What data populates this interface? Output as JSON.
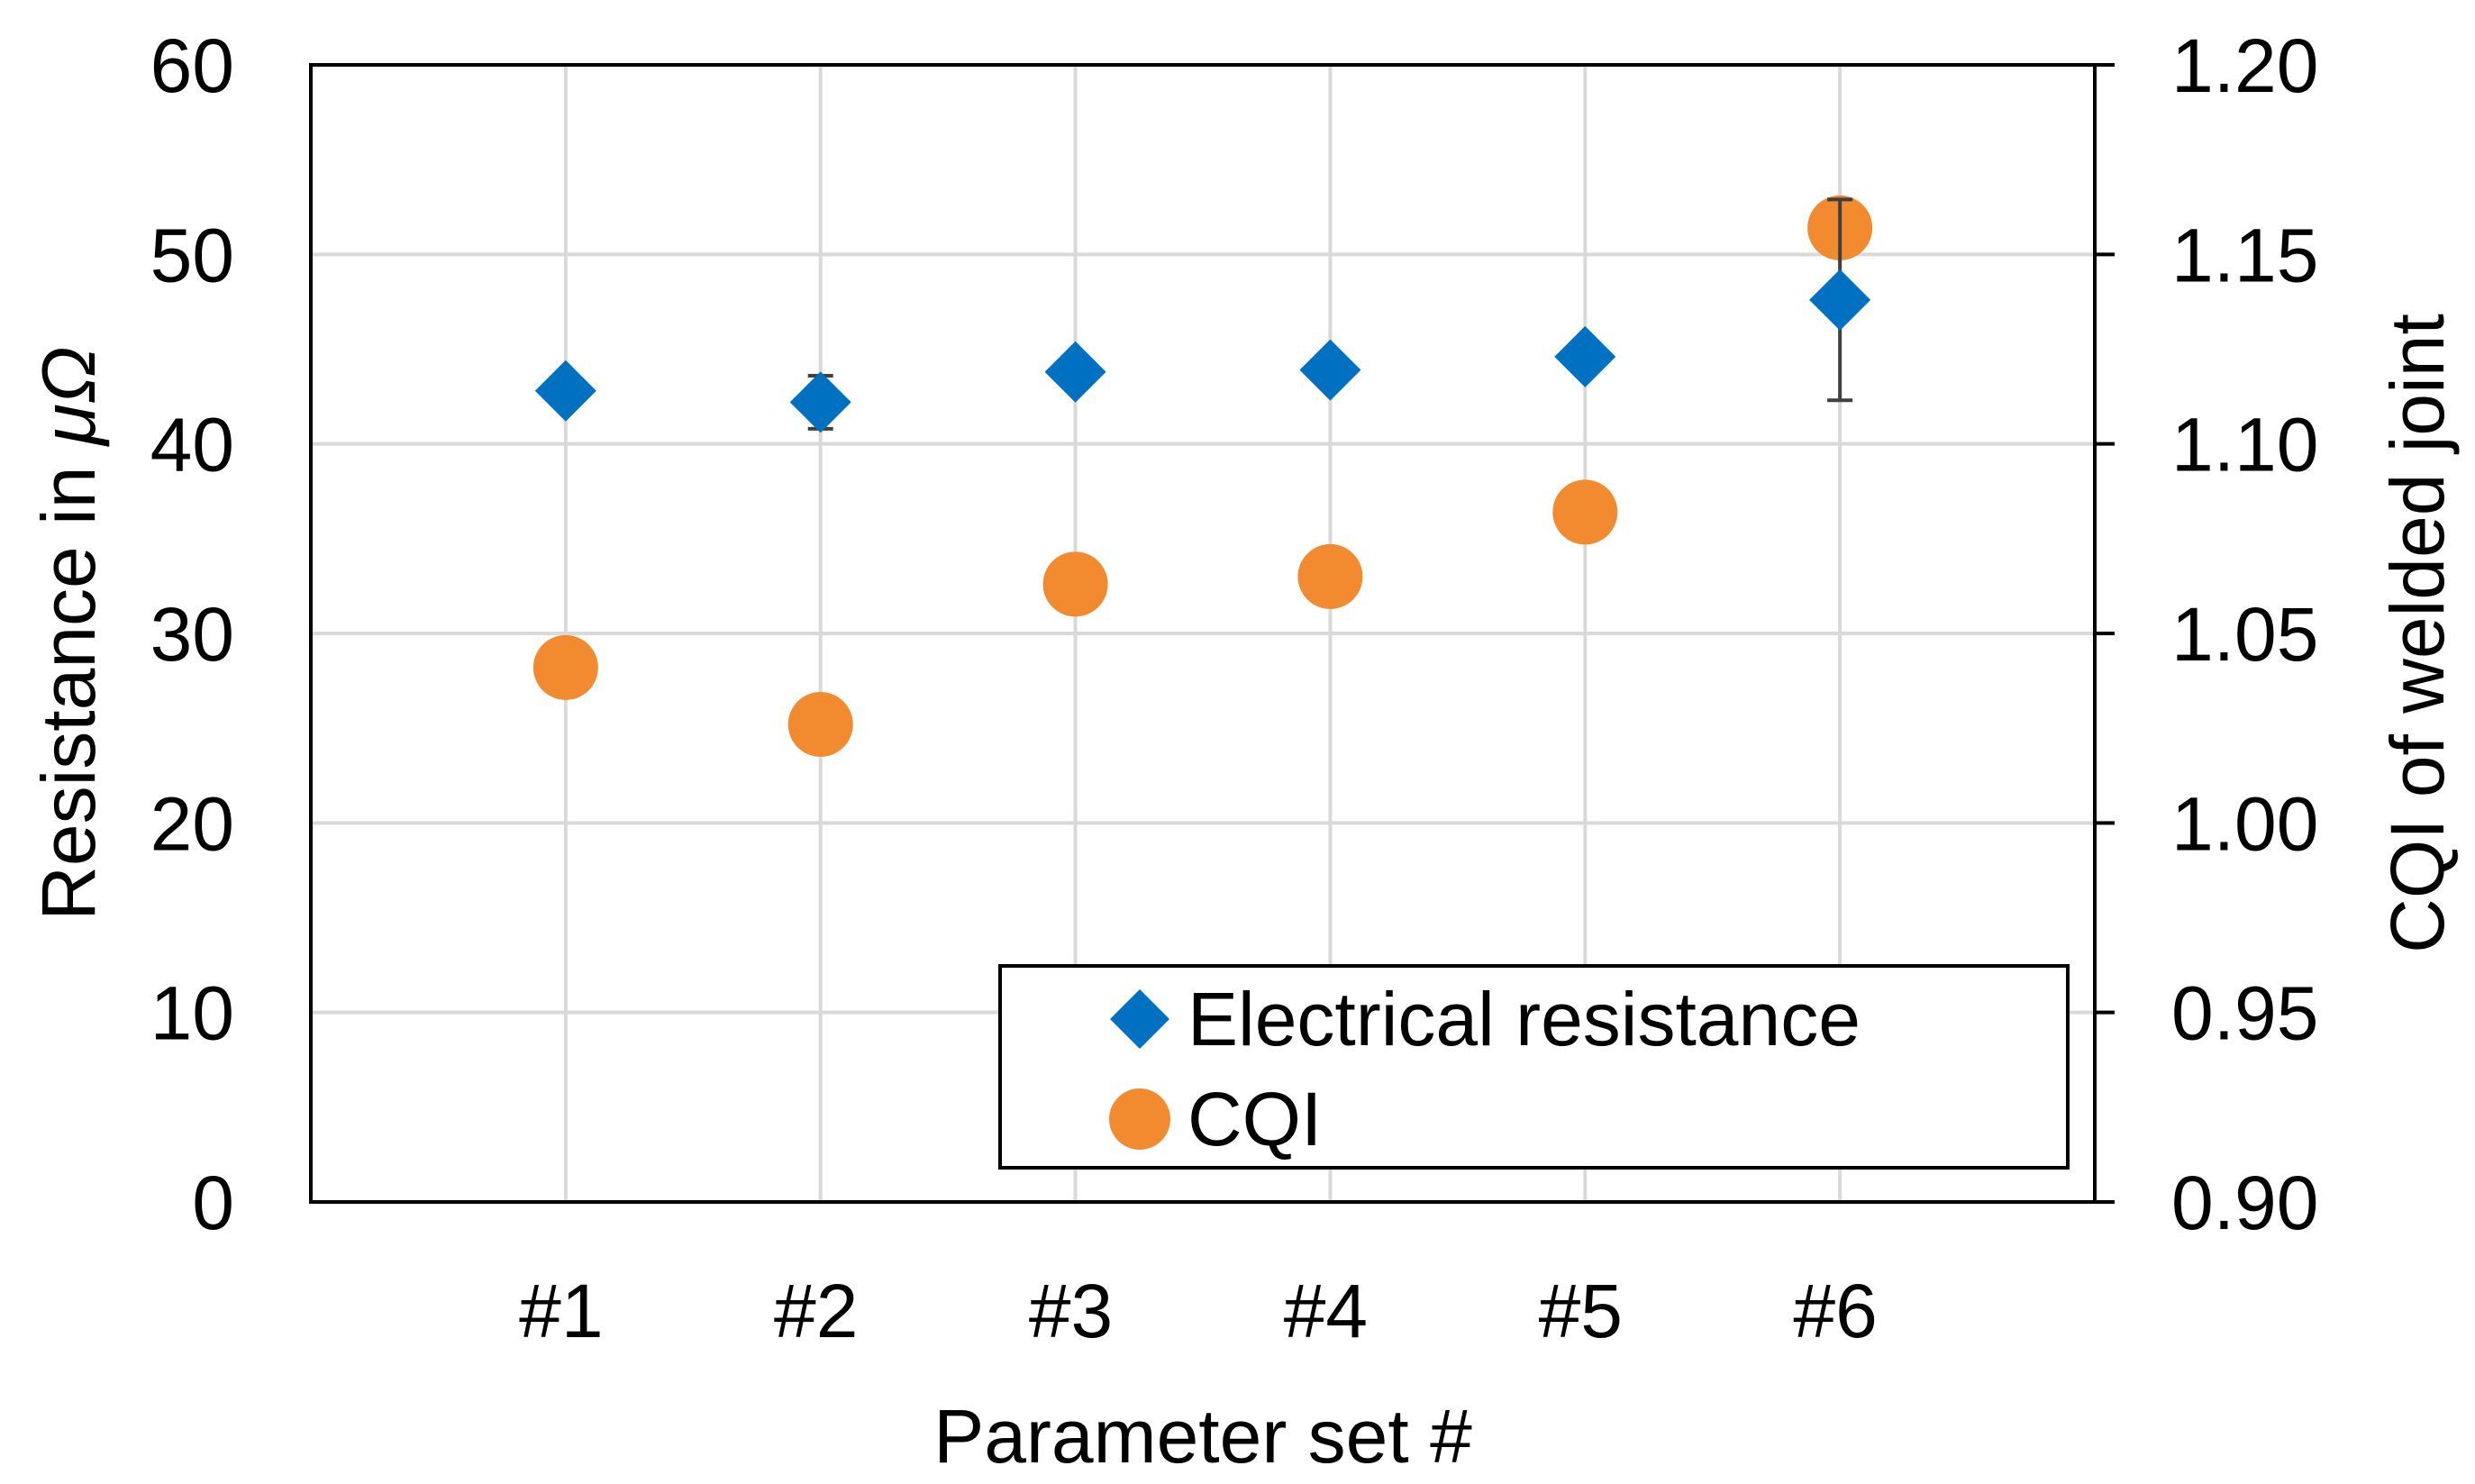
{
  "chart_data": {
    "type": "scatter",
    "title": "",
    "xlabel": "Parameter set #",
    "ylabel_left_prefix": "Resistance in ",
    "ylabel_left_unit": "μΩ",
    "ylabel_right": "CQI of welded joint",
    "categories": [
      "#1",
      "#2",
      "#3",
      "#4",
      "#5",
      "#6"
    ],
    "ylim_left": [
      0,
      60
    ],
    "ylim_right": [
      0.9,
      1.2
    ],
    "yticks_left": [
      "0",
      "10",
      "20",
      "30",
      "40",
      "50",
      "60"
    ],
    "yticks_right": [
      "0.90",
      "0.95",
      "1.00",
      "1.05",
      "1.10",
      "1.15",
      "1.20"
    ],
    "grid": true,
    "legend_position": "bottom-right",
    "series": [
      {
        "name": "Electrical resistance",
        "axis": "left",
        "marker": "diamond",
        "color": "#0070C0",
        "values": [
          42.8,
          42.2,
          43.8,
          43.9,
          44.6,
          47.6
        ],
        "error": [
          0.4,
          1.4,
          0.3,
          0.3,
          0.3,
          5.3
        ]
      },
      {
        "name": "CQI",
        "axis": "right",
        "marker": "circle",
        "color": "#F28A30",
        "values": [
          1.041,
          1.026,
          1.063,
          1.065,
          1.082,
          1.157
        ]
      }
    ]
  }
}
